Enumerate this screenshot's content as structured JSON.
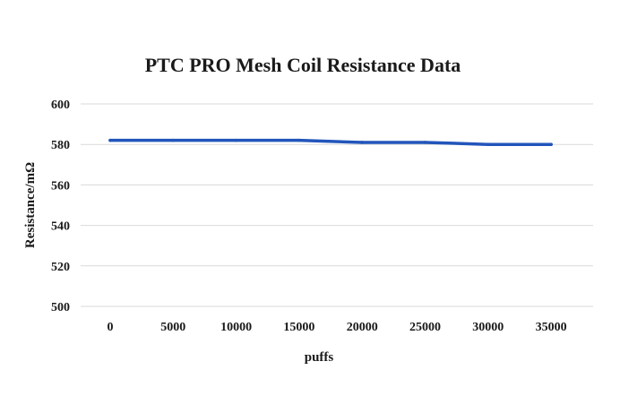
{
  "chart_data": {
    "type": "line",
    "title": "PTC PRO Mesh Coil Resistance Data",
    "xlabel": "puffs",
    "ylabel": "Resistance/mΩ",
    "categories": [
      "0",
      "5000",
      "10000",
      "15000",
      "20000",
      "25000",
      "30000",
      "35000"
    ],
    "series": [
      {
        "values": [
          582,
          582,
          582,
          582,
          581,
          581,
          580,
          580
        ]
      }
    ],
    "ylim": [
      500,
      600
    ],
    "yticks": [
      "500",
      "520",
      "540",
      "560",
      "580",
      "600"
    ],
    "grid": true,
    "legend": "none",
    "colors": {
      "line": "#2255bb",
      "grid": "#d9d9d9",
      "text": "#1a1a1a"
    }
  }
}
